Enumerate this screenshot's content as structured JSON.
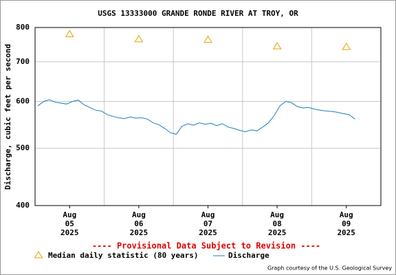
{
  "chart_data": {
    "type": "line",
    "title": "USGS 13333000 GRANDE RONDE RIVER AT TROY, OR",
    "y_label": "Discharge, cubic feet per second",
    "log_scale_y": true,
    "grid": true,
    "ylim": [
      400,
      800
    ],
    "yticks": [
      400,
      500,
      600,
      700,
      800
    ],
    "xlim": [
      "2025-08-05T00:00",
      "2025-08-10T00:00"
    ],
    "xticks": [
      {
        "value": "2025-08-05T12:00",
        "label": "Aug 05 2025"
      },
      {
        "value": "2025-08-06T12:00",
        "label": "Aug 06 2025"
      },
      {
        "value": "2025-08-07T12:00",
        "label": "Aug 07 2025"
      },
      {
        "value": "2025-08-08T12:00",
        "label": "Aug 08 2025"
      },
      {
        "value": "2025-08-09T12:00",
        "label": "Aug 09 2025"
      }
    ],
    "annotation": "---- Provisional Data Subject to Revision ----",
    "credit": "Graph courtesy of the U.S. Geological Survey",
    "series": [
      {
        "name": "Median daily statistic (80 years)",
        "marker": "triangle",
        "color": "#e8a000",
        "x": [
          "2025-08-05T12:00",
          "2025-08-06T12:00",
          "2025-08-07T12:00",
          "2025-08-08T12:00",
          "2025-08-09T12:00"
        ],
        "values": [
          780,
          765,
          763,
          744,
          742
        ]
      },
      {
        "name": "Discharge",
        "marker": "line",
        "color": "#1a7fb8",
        "x": [
          "2025-08-05T01:00",
          "2025-08-05T03:00",
          "2025-08-05T05:00",
          "2025-08-05T07:00",
          "2025-08-05T09:00",
          "2025-08-05T11:00",
          "2025-08-05T13:00",
          "2025-08-05T15:00",
          "2025-08-05T17:00",
          "2025-08-05T19:00",
          "2025-08-05T21:00",
          "2025-08-05T23:00",
          "2025-08-06T01:00",
          "2025-08-06T03:00",
          "2025-08-06T05:00",
          "2025-08-06T07:00",
          "2025-08-06T09:00",
          "2025-08-06T11:00",
          "2025-08-06T13:00",
          "2025-08-06T15:00",
          "2025-08-06T17:00",
          "2025-08-06T19:00",
          "2025-08-06T21:00",
          "2025-08-06T23:00",
          "2025-08-07T01:00",
          "2025-08-07T03:00",
          "2025-08-07T05:00",
          "2025-08-07T07:00",
          "2025-08-07T09:00",
          "2025-08-07T11:00",
          "2025-08-07T13:00",
          "2025-08-07T15:00",
          "2025-08-07T17:00",
          "2025-08-07T19:00",
          "2025-08-07T21:00",
          "2025-08-07T23:00",
          "2025-08-08T01:00",
          "2025-08-08T03:00",
          "2025-08-08T05:00",
          "2025-08-08T07:00",
          "2025-08-08T09:00",
          "2025-08-08T11:00",
          "2025-08-08T13:00",
          "2025-08-08T15:00",
          "2025-08-08T17:00",
          "2025-08-08T19:00",
          "2025-08-08T21:00",
          "2025-08-08T23:00",
          "2025-08-09T01:00",
          "2025-08-09T03:00",
          "2025-08-09T05:00",
          "2025-08-09T07:00",
          "2025-08-09T09:00",
          "2025-08-09T11:00",
          "2025-08-09T13:00",
          "2025-08-09T15:00"
        ],
        "values": [
          590,
          600,
          604,
          598,
          596,
          594,
          600,
          603,
          592,
          586,
          580,
          578,
          570,
          566,
          563,
          561,
          565,
          562,
          563,
          560,
          552,
          548,
          540,
          531,
          528,
          545,
          550,
          547,
          552,
          549,
          551,
          546,
          550,
          543,
          540,
          536,
          533,
          537,
          535,
          543,
          552,
          568,
          590,
          600,
          597,
          588,
          585,
          586,
          582,
          580,
          578,
          577,
          575,
          572,
          570,
          560
        ]
      }
    ]
  }
}
